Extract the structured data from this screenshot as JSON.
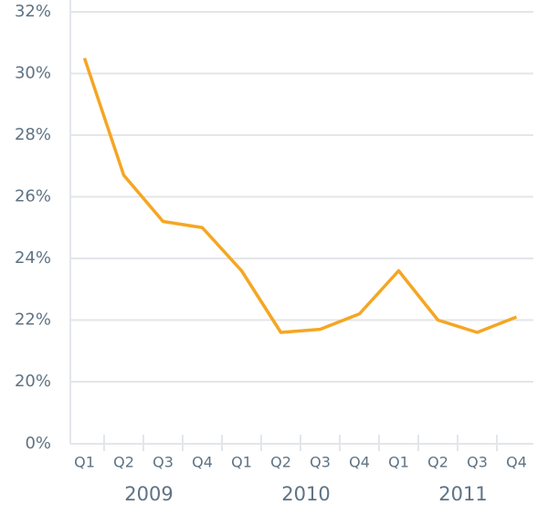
{
  "chart_data": {
    "type": "line",
    "categories": [
      "Q1",
      "Q2",
      "Q3",
      "Q4",
      "Q1",
      "Q2",
      "Q3",
      "Q4",
      "Q1",
      "Q2",
      "Q3",
      "Q4"
    ],
    "groups": [
      "2009",
      "2010",
      "2011"
    ],
    "series": [
      {
        "name": null,
        "color": "#f5a623",
        "values": [
          30.5,
          26.7,
          25.2,
          25.0,
          23.6,
          21.6,
          21.7,
          22.2,
          23.6,
          22.0,
          21.6,
          22.1
        ]
      }
    ],
    "ylim": [
      0,
      32
    ],
    "yticks": [
      {
        "value": 0,
        "label": "0%"
      },
      {
        "value": 20,
        "label": "20%"
      },
      {
        "value": 22,
        "label": "22%"
      },
      {
        "value": 24,
        "label": "24%"
      },
      {
        "value": 26,
        "label": "26%"
      },
      {
        "value": 28,
        "label": "28%"
      },
      {
        "value": 30,
        "label": "30%"
      },
      {
        "value": 32,
        "label": "32%"
      }
    ],
    "grid": true
  }
}
